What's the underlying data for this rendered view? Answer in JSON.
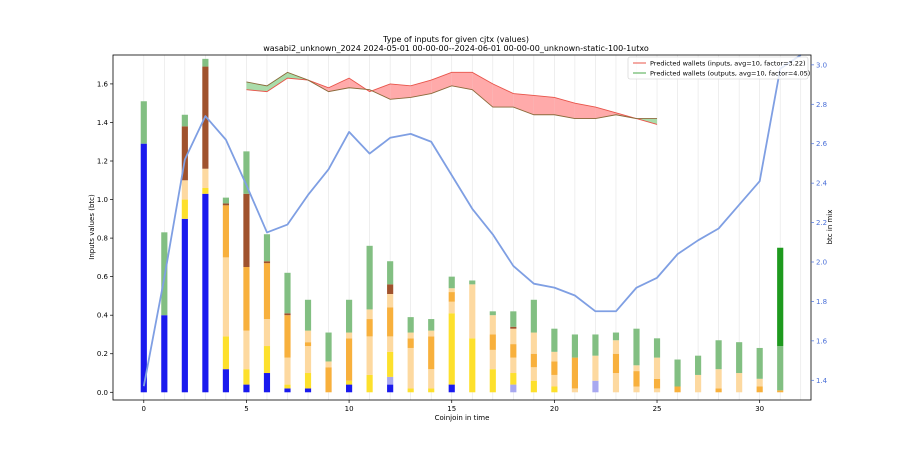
{
  "chart_data": {
    "type": "bar",
    "title": "Type of inputs for given cjtx (values)",
    "subtitle": "wasabi2_unknown_2024 2024-05-01 00-00-00--2024-06-01 00-00-00_unknown-static-100-1utxo",
    "xlabel": "Coinjoin in time",
    "ylabel": "Inputs values (btc)",
    "y2label": "btc in mix",
    "xlim": [
      -1.5,
      32.5
    ],
    "ylim": [
      -0.04,
      1.75
    ],
    "y2lim": [
      1.3,
      3.05
    ],
    "x_ticks": [
      0,
      5,
      10,
      15,
      20,
      25,
      30
    ],
    "y_ticks": [
      0.0,
      0.2,
      0.4,
      0.6,
      0.8,
      1.0,
      1.2,
      1.4,
      1.6
    ],
    "y_tick_labels": [
      "0.0",
      "0.2",
      "0.4",
      "0.6",
      "0.8",
      "1.0",
      "1.2",
      "1.4",
      "1.6"
    ],
    "y2_ticks": [
      1.4,
      1.6,
      1.8,
      2.0,
      2.2,
      2.4,
      2.6,
      2.8,
      3.0
    ],
    "y2_tick_labels": [
      "1.4",
      "1.6",
      "1.8",
      "2.0",
      "2.2",
      "2.4",
      "2.6",
      "2.8",
      "3.0"
    ],
    "grid": "vertical",
    "legend_position": "top-right",
    "segment_colors": {
      "blue": "#1a1aee",
      "lavender": "#a8a8f0",
      "yellow": "#fde02c",
      "peach": "#fdd9a0",
      "orange": "#f8b03c",
      "brown": "#a0522d",
      "lightgreen": "#82bf82",
      "darkgreen": "#1e9a1e"
    },
    "stacked_bars": [
      {
        "x": 0,
        "segments": [
          {
            "color": "blue",
            "value": 1.29
          },
          {
            "color": "lightgreen",
            "value": 0.22
          }
        ]
      },
      {
        "x": 1,
        "segments": [
          {
            "color": "blue",
            "value": 0.4
          },
          {
            "color": "lightgreen",
            "value": 0.43
          }
        ]
      },
      {
        "x": 2,
        "segments": [
          {
            "color": "blue",
            "value": 0.9
          },
          {
            "color": "yellow",
            "value": 0.1
          },
          {
            "color": "peach",
            "value": 0.1
          },
          {
            "color": "brown",
            "value": 0.28
          },
          {
            "color": "lightgreen",
            "value": 0.06
          }
        ]
      },
      {
        "x": 3,
        "segments": [
          {
            "color": "blue",
            "value": 1.03
          },
          {
            "color": "yellow",
            "value": 0.03
          },
          {
            "color": "peach",
            "value": 0.1
          },
          {
            "color": "brown",
            "value": 0.53
          },
          {
            "color": "lightgreen",
            "value": 0.04
          }
        ]
      },
      {
        "x": 4,
        "segments": [
          {
            "color": "blue",
            "value": 0.12
          },
          {
            "color": "yellow",
            "value": 0.17
          },
          {
            "color": "peach",
            "value": 0.41
          },
          {
            "color": "orange",
            "value": 0.27
          },
          {
            "color": "brown",
            "value": 0.01
          },
          {
            "color": "lightgreen",
            "value": 0.03
          }
        ]
      },
      {
        "x": 5,
        "segments": [
          {
            "color": "blue",
            "value": 0.04
          },
          {
            "color": "yellow",
            "value": 0.08
          },
          {
            "color": "peach",
            "value": 0.2
          },
          {
            "color": "orange",
            "value": 0.33
          },
          {
            "color": "brown",
            "value": 0.38
          },
          {
            "color": "lightgreen",
            "value": 0.22
          }
        ]
      },
      {
        "x": 6,
        "segments": [
          {
            "color": "blue",
            "value": 0.1
          },
          {
            "color": "yellow",
            "value": 0.14
          },
          {
            "color": "peach",
            "value": 0.14
          },
          {
            "color": "orange",
            "value": 0.29
          },
          {
            "color": "brown",
            "value": 0.01
          },
          {
            "color": "lightgreen",
            "value": 0.14
          }
        ]
      },
      {
        "x": 7,
        "segments": [
          {
            "color": "blue",
            "value": 0.02
          },
          {
            "color": "yellow",
            "value": 0.02
          },
          {
            "color": "peach",
            "value": 0.14
          },
          {
            "color": "orange",
            "value": 0.22
          },
          {
            "color": "brown",
            "value": 0.01
          },
          {
            "color": "lightgreen",
            "value": 0.21
          }
        ]
      },
      {
        "x": 8,
        "segments": [
          {
            "color": "blue",
            "value": 0.02
          },
          {
            "color": "yellow",
            "value": 0.08
          },
          {
            "color": "peach",
            "value": 0.14
          },
          {
            "color": "orange",
            "value": 0.02
          },
          {
            "color": "peach",
            "value": 0.06
          },
          {
            "color": "lightgreen",
            "value": 0.16
          }
        ]
      },
      {
        "x": 9,
        "segments": [
          {
            "color": "orange",
            "value": 0.13
          },
          {
            "color": "peach",
            "value": 0.03
          },
          {
            "color": "lightgreen",
            "value": 0.15
          }
        ]
      },
      {
        "x": 10,
        "segments": [
          {
            "color": "blue",
            "value": 0.04
          },
          {
            "color": "yellow",
            "value": 0.02
          },
          {
            "color": "orange",
            "value": 0.22
          },
          {
            "color": "peach",
            "value": 0.03
          },
          {
            "color": "lightgreen",
            "value": 0.17
          }
        ]
      },
      {
        "x": 11,
        "segments": [
          {
            "color": "yellow",
            "value": 0.09
          },
          {
            "color": "peach",
            "value": 0.2
          },
          {
            "color": "orange",
            "value": 0.09
          },
          {
            "color": "peach",
            "value": 0.05
          },
          {
            "color": "lightgreen",
            "value": 0.33
          }
        ]
      },
      {
        "x": 12,
        "segments": [
          {
            "color": "blue",
            "value": 0.04
          },
          {
            "color": "lavender",
            "value": 0.04
          },
          {
            "color": "yellow",
            "value": 0.13
          },
          {
            "color": "peach",
            "value": 0.08
          },
          {
            "color": "orange",
            "value": 0.15
          },
          {
            "color": "peach",
            "value": 0.07
          },
          {
            "color": "brown",
            "value": 0.05
          },
          {
            "color": "lightgreen",
            "value": 0.12
          }
        ]
      },
      {
        "x": 13,
        "segments": [
          {
            "color": "yellow",
            "value": 0.02
          },
          {
            "color": "peach",
            "value": 0.21
          },
          {
            "color": "orange",
            "value": 0.05
          },
          {
            "color": "peach",
            "value": 0.03
          },
          {
            "color": "lightgreen",
            "value": 0.08
          }
        ]
      },
      {
        "x": 14,
        "segments": [
          {
            "color": "yellow",
            "value": 0.02
          },
          {
            "color": "peach",
            "value": 0.1
          },
          {
            "color": "orange",
            "value": 0.17
          },
          {
            "color": "peach",
            "value": 0.03
          },
          {
            "color": "lightgreen",
            "value": 0.06
          }
        ]
      },
      {
        "x": 15,
        "segments": [
          {
            "color": "blue",
            "value": 0.04
          },
          {
            "color": "yellow",
            "value": 0.37
          },
          {
            "color": "peach",
            "value": 0.06
          },
          {
            "color": "orange",
            "value": 0.05
          },
          {
            "color": "peach",
            "value": 0.02
          },
          {
            "color": "lightgreen",
            "value": 0.06
          }
        ]
      },
      {
        "x": 16,
        "segments": [
          {
            "color": "yellow",
            "value": 0.28
          },
          {
            "color": "peach",
            "value": 0.28
          },
          {
            "color": "lightgreen",
            "value": 0.02
          }
        ]
      },
      {
        "x": 17,
        "segments": [
          {
            "color": "yellow",
            "value": 0.12
          },
          {
            "color": "peach",
            "value": 0.1
          },
          {
            "color": "orange",
            "value": 0.08
          },
          {
            "color": "peach",
            "value": 0.1
          },
          {
            "color": "lightgreen",
            "value": 0.02
          }
        ]
      },
      {
        "x": 18,
        "segments": [
          {
            "color": "lavender",
            "value": 0.04
          },
          {
            "color": "yellow",
            "value": 0.06
          },
          {
            "color": "peach",
            "value": 0.08
          },
          {
            "color": "orange",
            "value": 0.07
          },
          {
            "color": "peach",
            "value": 0.08
          },
          {
            "color": "brown",
            "value": 0.01
          },
          {
            "color": "lightgreen",
            "value": 0.08
          }
        ]
      },
      {
        "x": 19,
        "segments": [
          {
            "color": "yellow",
            "value": 0.06
          },
          {
            "color": "peach",
            "value": 0.07
          },
          {
            "color": "orange",
            "value": 0.07
          },
          {
            "color": "peach",
            "value": 0.11
          },
          {
            "color": "lightgreen",
            "value": 0.17
          }
        ]
      },
      {
        "x": 20,
        "segments": [
          {
            "color": "yellow",
            "value": 0.03
          },
          {
            "color": "peach",
            "value": 0.06
          },
          {
            "color": "orange",
            "value": 0.07
          },
          {
            "color": "peach",
            "value": 0.05
          },
          {
            "color": "lightgreen",
            "value": 0.12
          }
        ]
      },
      {
        "x": 21,
        "segments": [
          {
            "color": "peach",
            "value": 0.02
          },
          {
            "color": "orange",
            "value": 0.16
          },
          {
            "color": "lightgreen",
            "value": 0.12
          }
        ]
      },
      {
        "x": 22,
        "segments": [
          {
            "color": "lavender",
            "value": 0.06
          },
          {
            "color": "peach",
            "value": 0.13
          },
          {
            "color": "lightgreen",
            "value": 0.11
          }
        ]
      },
      {
        "x": 23,
        "segments": [
          {
            "color": "peach",
            "value": 0.1
          },
          {
            "color": "orange",
            "value": 0.1
          },
          {
            "color": "peach",
            "value": 0.07
          },
          {
            "color": "lightgreen",
            "value": 0.04
          }
        ]
      },
      {
        "x": 24,
        "segments": [
          {
            "color": "peach",
            "value": 0.03
          },
          {
            "color": "orange",
            "value": 0.08
          },
          {
            "color": "peach",
            "value": 0.03
          },
          {
            "color": "lightgreen",
            "value": 0.19
          }
        ]
      },
      {
        "x": 25,
        "segments": [
          {
            "color": "peach",
            "value": 0.02
          },
          {
            "color": "orange",
            "value": 0.05
          },
          {
            "color": "peach",
            "value": 0.11
          },
          {
            "color": "lightgreen",
            "value": 0.1
          }
        ]
      },
      {
        "x": 26,
        "segments": [
          {
            "color": "orange",
            "value": 0.03
          },
          {
            "color": "lightgreen",
            "value": 0.14
          }
        ]
      },
      {
        "x": 27,
        "segments": [
          {
            "color": "peach",
            "value": 0.09
          },
          {
            "color": "lightgreen",
            "value": 0.1
          }
        ]
      },
      {
        "x": 28,
        "segments": [
          {
            "color": "orange",
            "value": 0.02
          },
          {
            "color": "peach",
            "value": 0.1
          },
          {
            "color": "lightgreen",
            "value": 0.15
          }
        ]
      },
      {
        "x": 29,
        "segments": [
          {
            "color": "peach",
            "value": 0.1
          },
          {
            "color": "lightgreen",
            "value": 0.16
          }
        ]
      },
      {
        "x": 30,
        "segments": [
          {
            "color": "orange",
            "value": 0.03
          },
          {
            "color": "peach",
            "value": 0.04
          },
          {
            "color": "lightgreen",
            "value": 0.16
          }
        ]
      },
      {
        "x": 31,
        "segments": [
          {
            "color": "orange",
            "value": 0.01
          },
          {
            "color": "lightgreen",
            "value": 0.23
          },
          {
            "color": "darkgreen",
            "value": 0.51
          }
        ]
      }
    ],
    "line_series": {
      "axis": "right",
      "color": "#7f9fe3",
      "points": [
        [
          0,
          1.37
        ],
        [
          1,
          1.92
        ],
        [
          2,
          2.52
        ],
        [
          3,
          2.74
        ],
        [
          4,
          2.62
        ],
        [
          5,
          2.39
        ],
        [
          6,
          2.15
        ],
        [
          7,
          2.19
        ],
        [
          8,
          2.34
        ],
        [
          9,
          2.47
        ],
        [
          10,
          2.66
        ],
        [
          11,
          2.55
        ],
        [
          12,
          2.63
        ],
        [
          13,
          2.65
        ],
        [
          14,
          2.61
        ],
        [
          15,
          2.44
        ],
        [
          16,
          2.27
        ],
        [
          17,
          2.14
        ],
        [
          18,
          1.98
        ],
        [
          19,
          1.89
        ],
        [
          20,
          1.87
        ],
        [
          21,
          1.83
        ],
        [
          22,
          1.75
        ],
        [
          23,
          1.75
        ],
        [
          24,
          1.87
        ],
        [
          25,
          1.92
        ],
        [
          26,
          2.04
        ],
        [
          27,
          2.11
        ],
        [
          28,
          2.17
        ],
        [
          29,
          2.29
        ],
        [
          30,
          2.41
        ],
        [
          31,
          2.98
        ],
        [
          32,
          3.05
        ]
      ]
    },
    "predicted_wallets": {
      "inputs": {
        "name": "Predicted wallets (inputs, avg=10, factor=3.22)",
        "color": "#e8544a",
        "fill": "#ffaaaa",
        "values": [
          [
            5,
            1.57
          ],
          [
            6,
            1.56
          ],
          [
            7,
            1.63
          ],
          [
            8,
            1.62
          ],
          [
            9,
            1.58
          ],
          [
            10,
            1.63
          ],
          [
            11,
            1.56
          ],
          [
            12,
            1.6
          ],
          [
            13,
            1.59
          ],
          [
            14,
            1.62
          ],
          [
            15,
            1.66
          ],
          [
            16,
            1.66
          ],
          [
            17,
            1.6
          ],
          [
            18,
            1.55
          ],
          [
            19,
            1.54
          ],
          [
            20,
            1.53
          ],
          [
            21,
            1.5
          ],
          [
            22,
            1.48
          ],
          [
            23,
            1.45
          ],
          [
            24,
            1.42
          ],
          [
            25,
            1.39
          ]
        ]
      },
      "outputs": {
        "name": "Predicted wallets (outputs, avg=10, factor=4.05)",
        "color": "#4aa84a",
        "fill": "#aadcaa",
        "values": [
          [
            5,
            1.61
          ],
          [
            6,
            1.59
          ],
          [
            7,
            1.66
          ],
          [
            8,
            1.62
          ],
          [
            9,
            1.56
          ],
          [
            10,
            1.58
          ],
          [
            11,
            1.57
          ],
          [
            12,
            1.52
          ],
          [
            13,
            1.53
          ],
          [
            14,
            1.55
          ],
          [
            15,
            1.59
          ],
          [
            16,
            1.57
          ],
          [
            17,
            1.48
          ],
          [
            18,
            1.48
          ],
          [
            19,
            1.44
          ],
          [
            20,
            1.44
          ],
          [
            21,
            1.42
          ],
          [
            22,
            1.42
          ],
          [
            23,
            1.44
          ],
          [
            24,
            1.42
          ],
          [
            25,
            1.42
          ]
        ]
      }
    }
  }
}
